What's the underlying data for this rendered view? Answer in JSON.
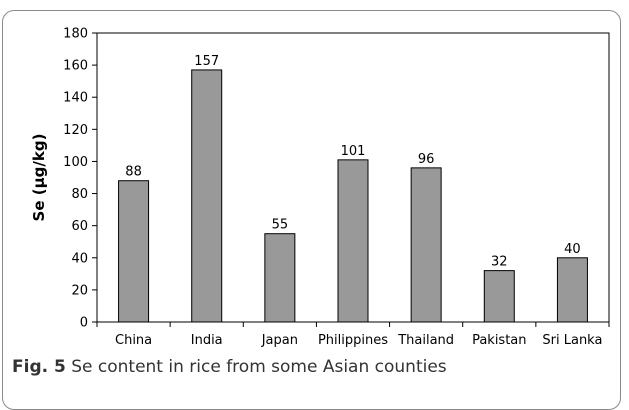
{
  "caption": {
    "label": "Fig. 5",
    "text": "Se content in rice from some Asian counties"
  },
  "chart_data": {
    "type": "bar",
    "title": "",
    "xlabel": "",
    "ylabel": "Se (µg/kg)",
    "ylim": [
      0,
      180
    ],
    "yticks": [
      0,
      20,
      40,
      60,
      80,
      100,
      120,
      140,
      160,
      180
    ],
    "categories": [
      "China",
      "India",
      "Japan",
      "Philippines",
      "Thailand",
      "Pakistan",
      "Sri Lanka"
    ],
    "values": [
      88,
      157,
      55,
      101,
      96,
      32,
      40
    ],
    "data_labels": [
      "88",
      "157",
      "55",
      "101",
      "96",
      "32",
      "40"
    ],
    "grid": false,
    "bar_color": "#999999",
    "bar_edge_color": "#000000"
  }
}
